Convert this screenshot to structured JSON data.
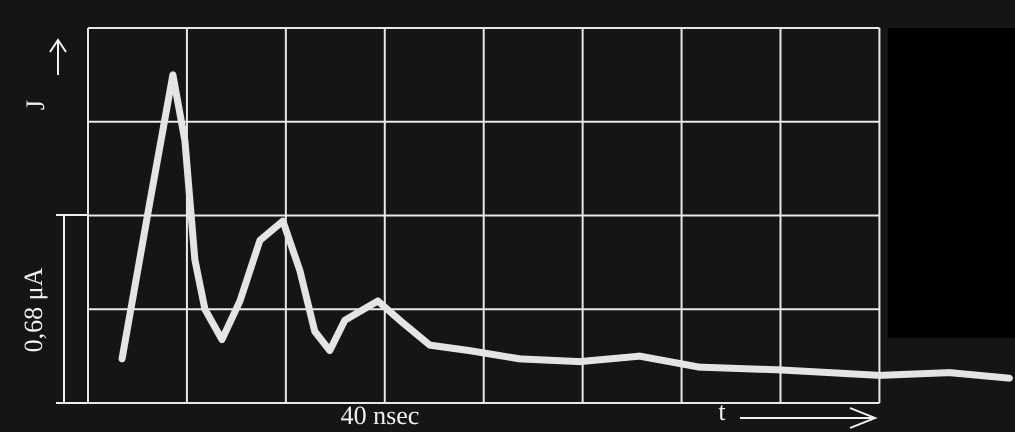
{
  "chart_data": {
    "type": "line",
    "y_label": "J",
    "x_label": "t",
    "y_scale_label": "0,68 μA",
    "x_scale_label": "40 nsec",
    "x": [
      1.72,
      3.13,
      4.29,
      4.9,
      5.4,
      5.91,
      6.77,
      7.68,
      8.69,
      9.85,
      10.71,
      11.46,
      12.22,
      12.98,
      14.65,
      15.76,
      17.27,
      19.29,
      21.82,
      24.85,
      27.88,
      30.91,
      34.95,
      40,
      43.54,
      46.57
    ],
    "series": [
      {
        "color": "#e4e4e4",
        "values": [
          0.16,
          0.73,
          1.19,
          0.95,
          0.52,
          0.34,
          0.23,
          0.37,
          0.59,
          0.66,
          0.48,
          0.26,
          0.19,
          0.3,
          0.37,
          0.3,
          0.21,
          0.19,
          0.16,
          0.15,
          0.17,
          0.13,
          0.12,
          0.1,
          0.11,
          0.09
        ]
      }
    ],
    "xlim": [
      0,
      46.6
    ],
    "ylim": [
      0,
      1.36
    ],
    "xticks": [
      0,
      5,
      10,
      15,
      20,
      25,
      30,
      35,
      40
    ],
    "yticks": [
      0,
      0.34,
      0.68,
      1.02,
      1.36
    ],
    "grid": true
  }
}
